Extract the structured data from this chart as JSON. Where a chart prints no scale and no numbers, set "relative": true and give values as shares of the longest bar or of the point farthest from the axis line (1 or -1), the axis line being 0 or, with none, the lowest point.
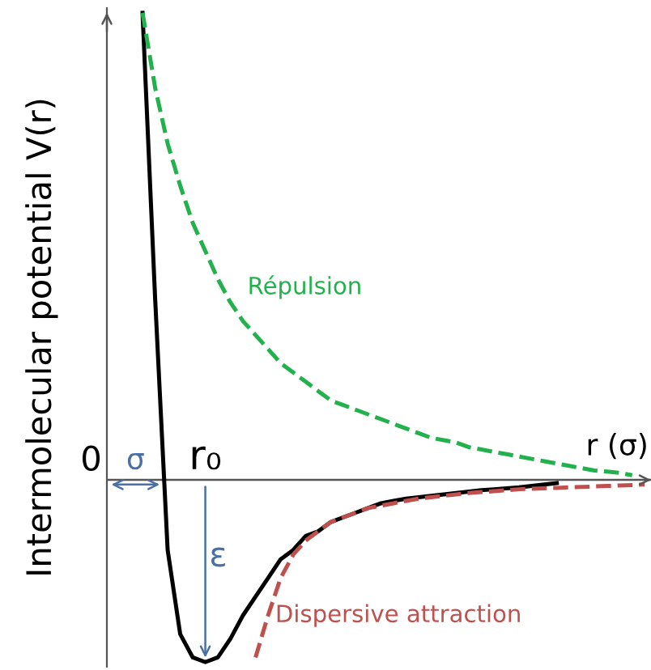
{
  "chart_data": {
    "type": "line",
    "relative": true,
    "xlabel": "r (σ)",
    "ylabel": "Intermolecular potential V(r)",
    "line_style": "solid",
    "marker": "none",
    "annotations": [
      "0",
      "σ",
      "r₀",
      "ε"
    ],
    "categories": [
      null,
      null,
      null,
      null,
      null,
      null,
      null,
      null,
      null,
      null,
      null,
      null,
      null,
      null,
      null,
      null,
      null,
      null,
      null,
      null,
      null,
      null,
      null,
      null,
      null,
      null,
      null,
      null,
      null,
      null,
      null,
      null,
      null,
      null,
      null,
      null,
      null,
      null,
      null,
      null,
      null
    ],
    "series": [
      {
        "color": "#000000",
        "values": [
          1.0,
          0.39,
          -0.15,
          -0.33,
          -0.38,
          -0.39,
          -0.38,
          -0.34,
          -0.29,
          -0.25,
          -0.21,
          -0.17,
          -0.15,
          -0.12,
          -0.11,
          -0.09,
          -0.08,
          -0.07,
          -0.06,
          -0.05,
          -0.045,
          -0.04,
          -0.037,
          -0.034,
          -0.031,
          -0.028,
          -0.025,
          -0.022,
          -0.02,
          -0.018,
          -0.016,
          -0.013,
          -0.01,
          -0.007,
          null,
          null,
          null,
          null,
          null,
          null,
          null
        ]
      },
      {
        "name": "Répulsion",
        "color": "#22b14c",
        "line_style": "dashed",
        "values": [
          1.0,
          0.84,
          0.72,
          0.63,
          0.55,
          0.49,
          0.43,
          0.38,
          0.34,
          0.31,
          0.28,
          0.25,
          0.23,
          0.21,
          0.19,
          0.17,
          0.16,
          0.15,
          0.14,
          0.13,
          0.12,
          0.11,
          0.1,
          0.09,
          0.085,
          0.08,
          0.07,
          0.065,
          0.06,
          0.055,
          0.05,
          0.045,
          0.04,
          0.035,
          0.03,
          0.025,
          0.02,
          0.018,
          0.015,
          0.01,
          null
        ]
      },
      {
        "name": "Dispersive attraction",
        "color": "#c0504d",
        "line_style": "dashed",
        "values": [
          null,
          null,
          null,
          null,
          null,
          null,
          null,
          null,
          null,
          -0.38,
          -0.29,
          -0.21,
          -0.16,
          -0.13,
          -0.11,
          -0.09,
          -0.08,
          -0.07,
          -0.06,
          -0.055,
          -0.05,
          -0.045,
          -0.04,
          -0.037,
          -0.034,
          -0.031,
          -0.028,
          -0.026,
          -0.024,
          -0.022,
          -0.02,
          -0.019,
          -0.018,
          -0.017,
          -0.016,
          -0.015,
          -0.014,
          -0.013,
          -0.012,
          -0.011,
          -0.01
        ]
      }
    ]
  }
}
